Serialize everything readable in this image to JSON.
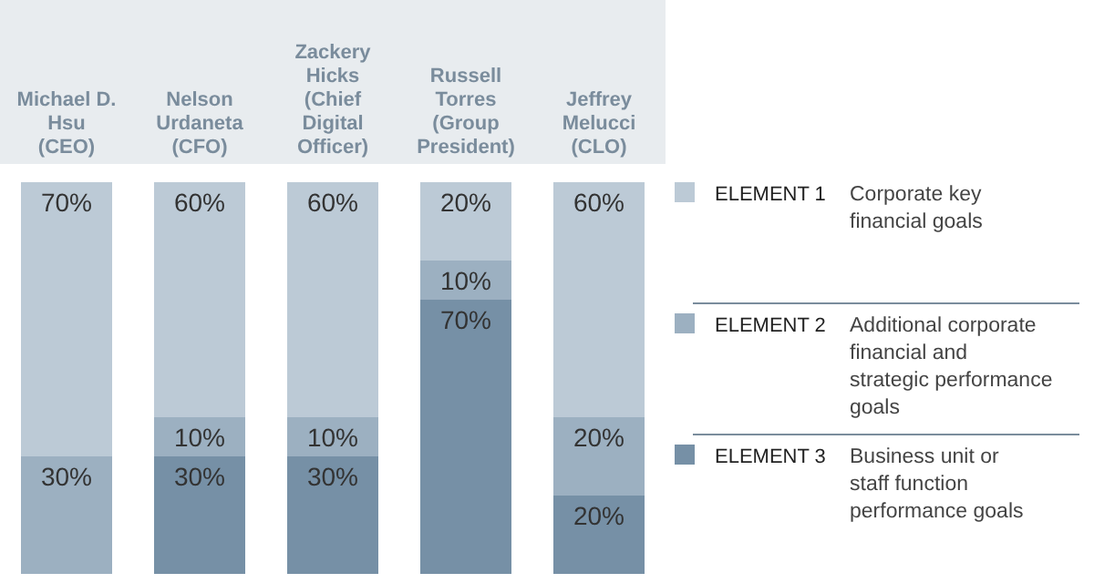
{
  "chart_data": {
    "type": "bar",
    "stacked": true,
    "legend": "right",
    "categories": [
      "Michael D. Hsu (CEO)",
      "Nelson Urdaneta (CFO)",
      "Zackery Hicks (Chief Digital Officer)",
      "Russell Torres (Group President)",
      "Jeffrey Melucci (CLO)"
    ],
    "series": [
      {
        "name": "ELEMENT 3",
        "color": "#7690a6",
        "values": [
          0,
          30,
          30,
          70,
          20
        ],
        "value_labels": [
          null,
          "30%",
          "30%",
          "70%",
          "20%"
        ]
      },
      {
        "name": "ELEMENT 2",
        "color": "#9cb0c1",
        "values": [
          30,
          10,
          10,
          10,
          20
        ],
        "value_labels": [
          "30%",
          "10%",
          "10%",
          "10%",
          "20%"
        ]
      },
      {
        "name": "ELEMENT 1",
        "color": "#bccad6",
        "values": [
          70,
          60,
          60,
          20,
          60
        ],
        "value_labels": [
          "70%",
          "60%",
          "60%",
          "20%",
          "60%"
        ]
      }
    ],
    "annotations": [
      "Business unit or staff function performance goals",
      "Additional corporate financial and strategic performance goals",
      "Corporate key financial goals"
    ]
  }
}
